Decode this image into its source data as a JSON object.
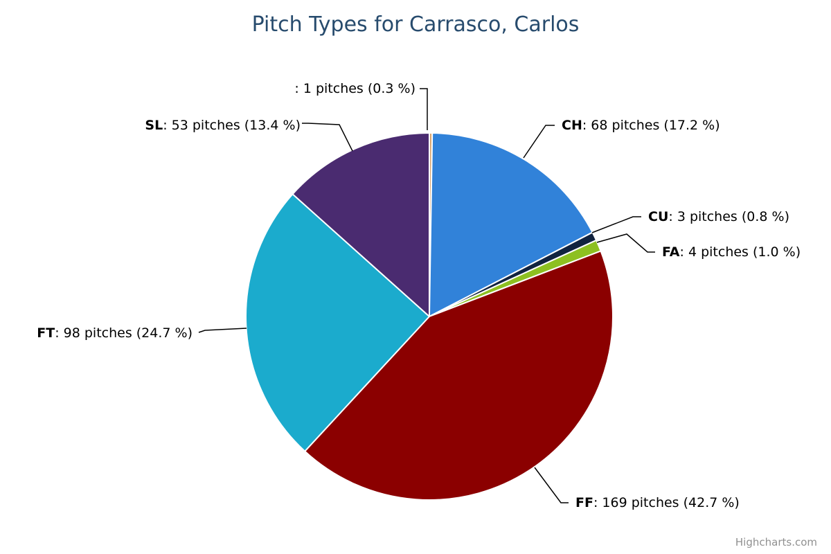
{
  "chart_data": {
    "type": "pie",
    "title": "Pitch Types for Carrasco, Carlos",
    "slices": [
      {
        "name": "",
        "pitches": 1,
        "percent": 0.3,
        "color": "#d9a36b",
        "label": "1 pitches (0.3 %)"
      },
      {
        "name": "CH",
        "pitches": 68,
        "percent": 17.2,
        "color": "#3182d9",
        "label": "68 pitches (17.2 %)"
      },
      {
        "name": "CU",
        "pitches": 3,
        "percent": 0.8,
        "color": "#11233f",
        "label": "3 pitches (0.8 %)"
      },
      {
        "name": "FA",
        "pitches": 4,
        "percent": 1.0,
        "color": "#8dc021",
        "label": "4 pitches (1.0 %)"
      },
      {
        "name": "FF",
        "pitches": 169,
        "percent": 42.7,
        "color": "#8b0000",
        "label": "169 pitches (42.7 %)"
      },
      {
        "name": "FT",
        "pitches": 98,
        "percent": 24.7,
        "color": "#1babcd",
        "label": "98 pitches (24.7 %)"
      },
      {
        "name": "SL",
        "pitches": 53,
        "percent": 13.4,
        "color": "#4a2b70",
        "label": "53 pitches (13.4 %)"
      }
    ]
  },
  "credits": "Highcharts.com"
}
